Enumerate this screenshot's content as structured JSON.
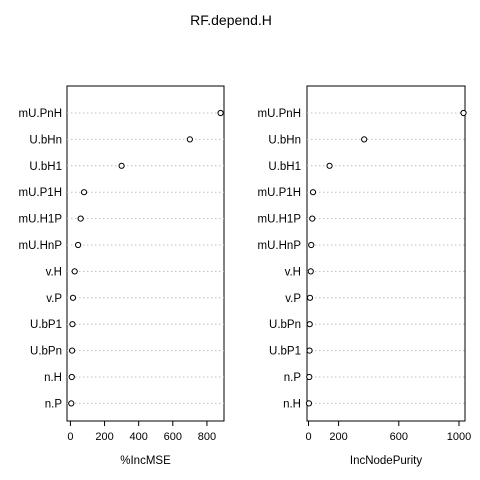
{
  "title": "RF.depend.H",
  "colors": {
    "background": "#ffffff",
    "ink": "#000000",
    "gridline": "#bebebe"
  },
  "chart_data": [
    {
      "type": "scatter",
      "variant": "dotchart",
      "title": "",
      "xlabel": "%IncMSE",
      "ylabel": "",
      "xlim": [
        -20,
        900
      ],
      "xticks": [
        0,
        200,
        400,
        600,
        800
      ],
      "grid": "horizontal dotted lines",
      "categories": [
        "mU.PnH",
        "U.bHn",
        "U.bH1",
        "mU.P1H",
        "mU.H1P",
        "mU.HnP",
        "v.H",
        "v.P",
        "U.bP1",
        "U.bPn",
        "n.H",
        "n.P"
      ],
      "values": [
        880,
        700,
        300,
        80,
        60,
        45,
        25,
        15,
        12,
        10,
        8,
        5
      ]
    },
    {
      "type": "scatter",
      "variant": "dotchart",
      "title": "",
      "xlabel": "IncNodePurity",
      "ylabel": "",
      "xlim": [
        -10,
        1040
      ],
      "xticks": [
        0,
        200,
        600,
        1000
      ],
      "grid": "horizontal dotted lines",
      "categories": [
        "mU.PnH",
        "U.bHn",
        "U.bH1",
        "mU.P1H",
        "mU.H1P",
        "mU.HnP",
        "v.H",
        "v.P",
        "U.bPn",
        "U.bP1",
        "n.P",
        "n.H"
      ],
      "values": [
        1030,
        370,
        140,
        30,
        25,
        18,
        15,
        10,
        8,
        7,
        5,
        3
      ]
    }
  ]
}
